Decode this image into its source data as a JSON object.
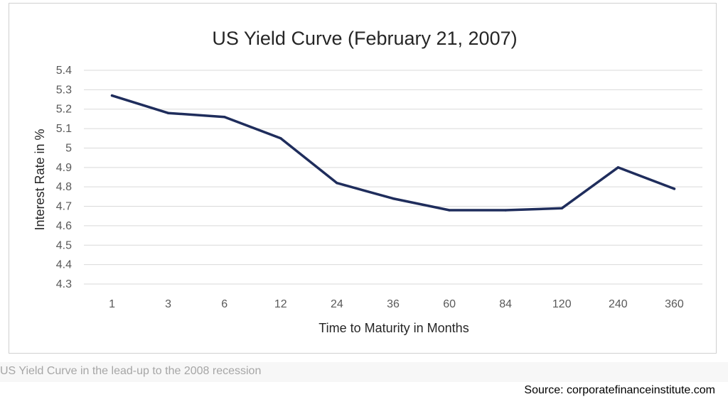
{
  "chart_data": {
    "type": "line",
    "title": "US Yield Curve (February 21, 2007)",
    "xlabel": "Time to Maturity in Months",
    "ylabel": "Interest Rate in %",
    "categories": [
      "1",
      "3",
      "6",
      "12",
      "24",
      "36",
      "60",
      "84",
      "120",
      "240",
      "360"
    ],
    "series": [
      {
        "values": [
          5.27,
          5.18,
          5.16,
          5.05,
          4.82,
          4.74,
          4.68,
          4.68,
          4.69,
          4.9,
          4.79
        ]
      }
    ],
    "yticks": [
      "4.3",
      "4.4",
      "4.5",
      "4.6",
      "4.7",
      "4.8",
      "4.9",
      "5",
      "5.1",
      "5.2",
      "5.3",
      "5.4"
    ],
    "ylim": [
      4.3,
      5.4
    ],
    "grid": true,
    "legend": "none",
    "line_color": "#1f2d5c",
    "grid_color": "#d9d9d9"
  },
  "caption": "US Yield Curve in the lead-up to the 2008 recession",
  "source": "Source: corporatefinanceinstitute.com"
}
